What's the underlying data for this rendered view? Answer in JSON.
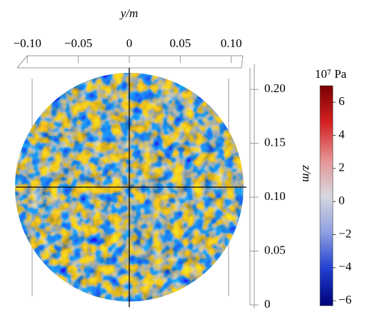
{
  "chart_data": {
    "type": "field",
    "xlabel": "y/m",
    "ylabel": "z/m",
    "xlim": [
      -0.11,
      0.11
    ],
    "xticks": [
      {
        "value": -0.1,
        "label": "−0.10"
      },
      {
        "value": -0.05,
        "label": "−0.05"
      },
      0,
      0.05,
      {
        "value": 0.1,
        "label": "0.10"
      }
    ],
    "ylim": [
      0,
      0.22
    ],
    "yticks": [
      0,
      0.05,
      {
        "value": 0.1,
        "label": "0.10"
      },
      0.15,
      {
        "value": 0.2,
        "label": "0.20"
      }
    ],
    "colorbar": {
      "title": "10⁷ Pa",
      "clim": [
        -6.3,
        7.0
      ],
      "ticks": [
        {
          "value": -6,
          "label": "−6"
        },
        {
          "value": -4,
          "label": "−4"
        },
        {
          "value": -2,
          "label": "−2"
        },
        0,
        2,
        4,
        6
      ],
      "colormap": [
        "#00007a",
        "#1f3fd0",
        "#8e9fe0",
        "#d8d8e0",
        "#e59090",
        "#d42020",
        "#7a0000"
      ]
    }
  }
}
